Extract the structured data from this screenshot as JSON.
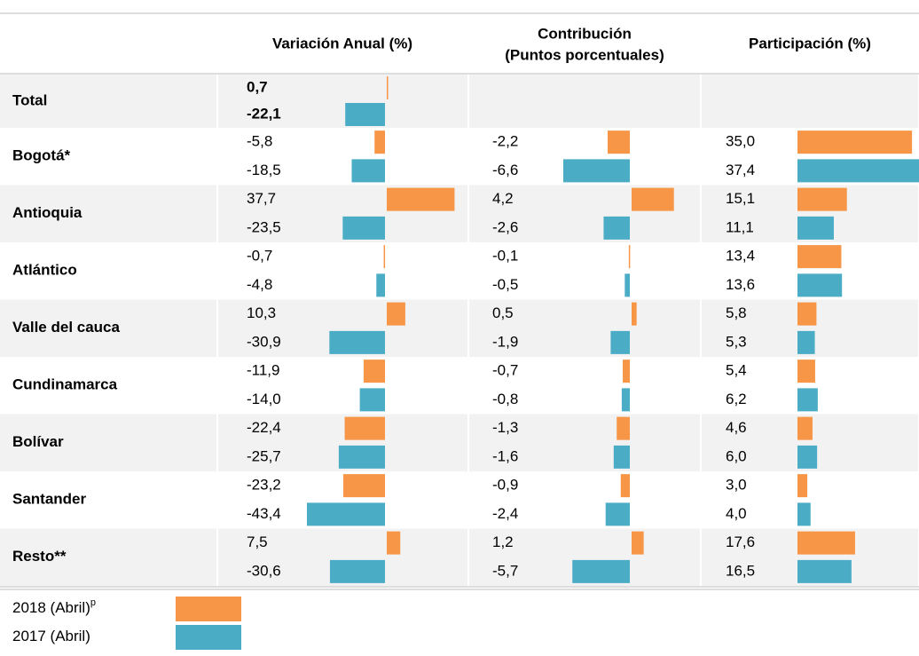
{
  "header": {
    "columns": [
      [
        "Variación Anual (%)"
      ],
      [
        "Contribución",
        "(Puntos porcentuales)"
      ],
      [
        "Participación (%)"
      ]
    ]
  },
  "rows": [
    {
      "label": "Total",
      "variacion": [
        "0,7",
        "-22,1"
      ]
    },
    {
      "label": "Bogotá*",
      "variacion": [
        "-5,8",
        "-18,5"
      ],
      "contribucion": [
        "-2,2",
        "-6,6"
      ],
      "participacion": [
        "35,0",
        "37,4"
      ]
    },
    {
      "label": "Antioquia",
      "variacion": [
        "37,7",
        "-23,5"
      ],
      "contribucion": [
        "4,2",
        "-2,6"
      ],
      "participacion": [
        "15,1",
        "11,1"
      ]
    },
    {
      "label": "Atlántico",
      "variacion": [
        "-0,7",
        "-4,8"
      ],
      "contribucion": [
        "-0,1",
        "-0,5"
      ],
      "participacion": [
        "13,4",
        "13,6"
      ]
    },
    {
      "label": "Valle del cauca",
      "variacion": [
        "10,3",
        "-30,9"
      ],
      "contribucion": [
        "0,5",
        "-1,9"
      ],
      "participacion": [
        "5,8",
        "5,3"
      ]
    },
    {
      "label": "Cundinamarca",
      "variacion": [
        "-11,9",
        "-14,0"
      ],
      "contribucion": [
        "-0,7",
        "-0,8"
      ],
      "participacion": [
        "5,4",
        "6,2"
      ]
    },
    {
      "label": "Bolívar",
      "variacion": [
        "-22,4",
        "-25,7"
      ],
      "contribucion": [
        "-1,3",
        "-1,6"
      ],
      "participacion": [
        "4,6",
        "6,0"
      ]
    },
    {
      "label": "Santander",
      "variacion": [
        "-23,2",
        "-43,4"
      ],
      "contribucion": [
        "-0,9",
        "-2,4"
      ],
      "participacion": [
        "3,0",
        "4,0"
      ]
    },
    {
      "label": "Resto**",
      "variacion": [
        "7,5",
        "-30,6"
      ],
      "contribucion": [
        "1,2",
        "-5,7"
      ],
      "participacion": [
        "17,6",
        "16,5"
      ]
    }
  ],
  "legend": [
    {
      "label": "2018 (Abril)",
      "sup": "p",
      "color": "#f79646"
    },
    {
      "label": "2017 (Abril)",
      "color": "#4bacc6"
    }
  ]
}
